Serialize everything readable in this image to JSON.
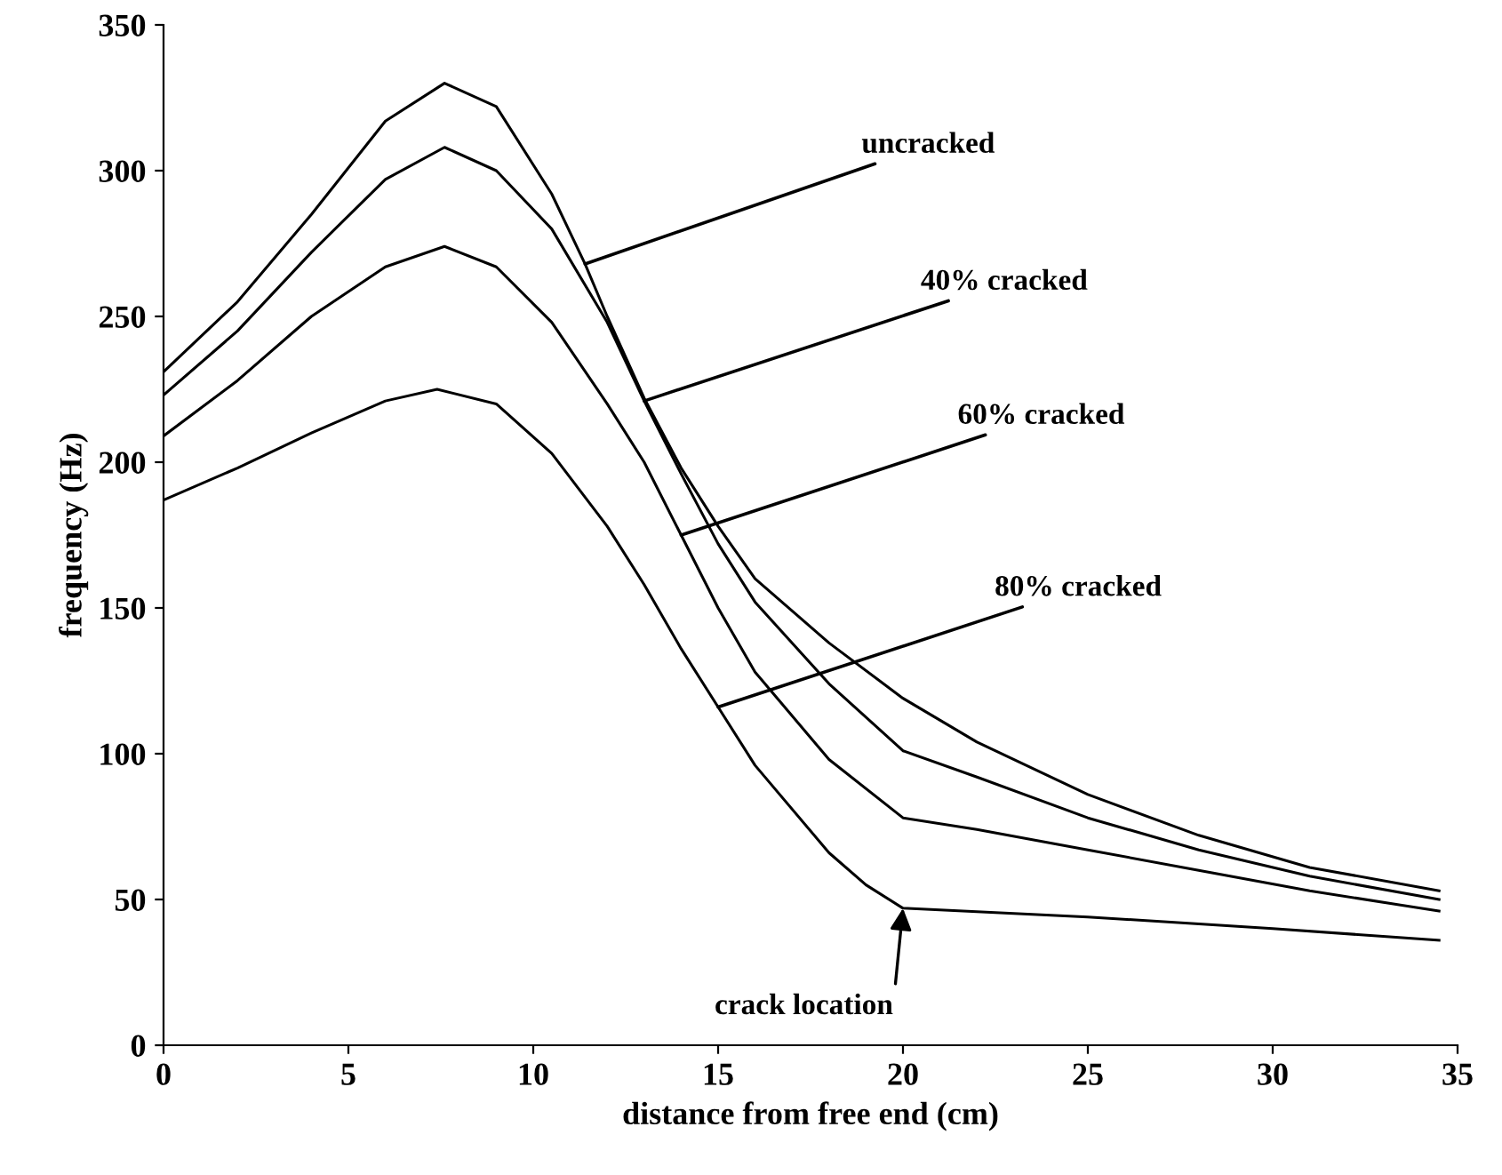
{
  "chart_data": {
    "type": "line",
    "xlabel": "distance from free end (cm)",
    "ylabel": "frequency (Hz)",
    "xlim": [
      0,
      35
    ],
    "ylim": [
      0,
      350
    ],
    "xticks": [
      0,
      5,
      10,
      15,
      20,
      25,
      30,
      35
    ],
    "yticks": [
      0,
      50,
      100,
      150,
      200,
      250,
      300,
      350
    ],
    "grid": false,
    "legend": false,
    "marker": "none",
    "line_style": "solid",
    "series": [
      {
        "color": "#000000",
        "x": [
          0,
          2,
          4,
          6,
          7.6,
          9,
          10.5,
          11.4,
          12,
          13,
          14,
          15,
          16,
          18,
          20,
          22,
          25,
          28,
          31,
          34.5
        ],
        "values": [
          231,
          255,
          285,
          317,
          330,
          322,
          292,
          268,
          250,
          222,
          198,
          178,
          160,
          138,
          119,
          104,
          86,
          72,
          61,
          53
        ]
      },
      {
        "color": "#000000",
        "x": [
          0,
          2,
          4,
          6,
          7.6,
          9,
          10.5,
          12,
          13,
          14,
          15,
          16,
          18,
          20,
          22,
          25,
          28,
          31,
          34.5
        ],
        "values": [
          223,
          245,
          272,
          297,
          308,
          300,
          280,
          248,
          221,
          196,
          172,
          152,
          124,
          101,
          92,
          78,
          67,
          58,
          50
        ]
      },
      {
        "color": "#000000",
        "x": [
          0,
          2,
          4,
          6,
          7.6,
          9,
          10.5,
          12,
          13,
          14,
          15,
          16,
          18,
          20,
          22,
          25,
          28,
          31,
          34.5
        ],
        "values": [
          209,
          228,
          250,
          267,
          274,
          267,
          248,
          220,
          200,
          175,
          150,
          128,
          98,
          78,
          74,
          67,
          60,
          53,
          46
        ]
      },
      {
        "color": "#000000",
        "x": [
          0,
          2,
          4,
          6,
          7.4,
          9,
          10.5,
          12,
          13,
          14,
          15,
          16,
          18,
          19,
          20,
          25,
          30,
          34.5
        ],
        "values": [
          187,
          198,
          210,
          221,
          225,
          220,
          203,
          178,
          158,
          136,
          116,
          96,
          66,
          55,
          47,
          44,
          40,
          36
        ]
      }
    ],
    "annotations": [
      {
        "text": "uncracked",
        "x": 11.4,
        "y": 268
      },
      {
        "text": "40% cracked",
        "x": 13,
        "y": 221
      },
      {
        "text": "60% cracked",
        "x": 14,
        "y": 175
      },
      {
        "text": "80% cracked",
        "x": 15,
        "y": 116
      },
      {
        "text": "crack location",
        "x": 20,
        "y": 47
      }
    ]
  }
}
